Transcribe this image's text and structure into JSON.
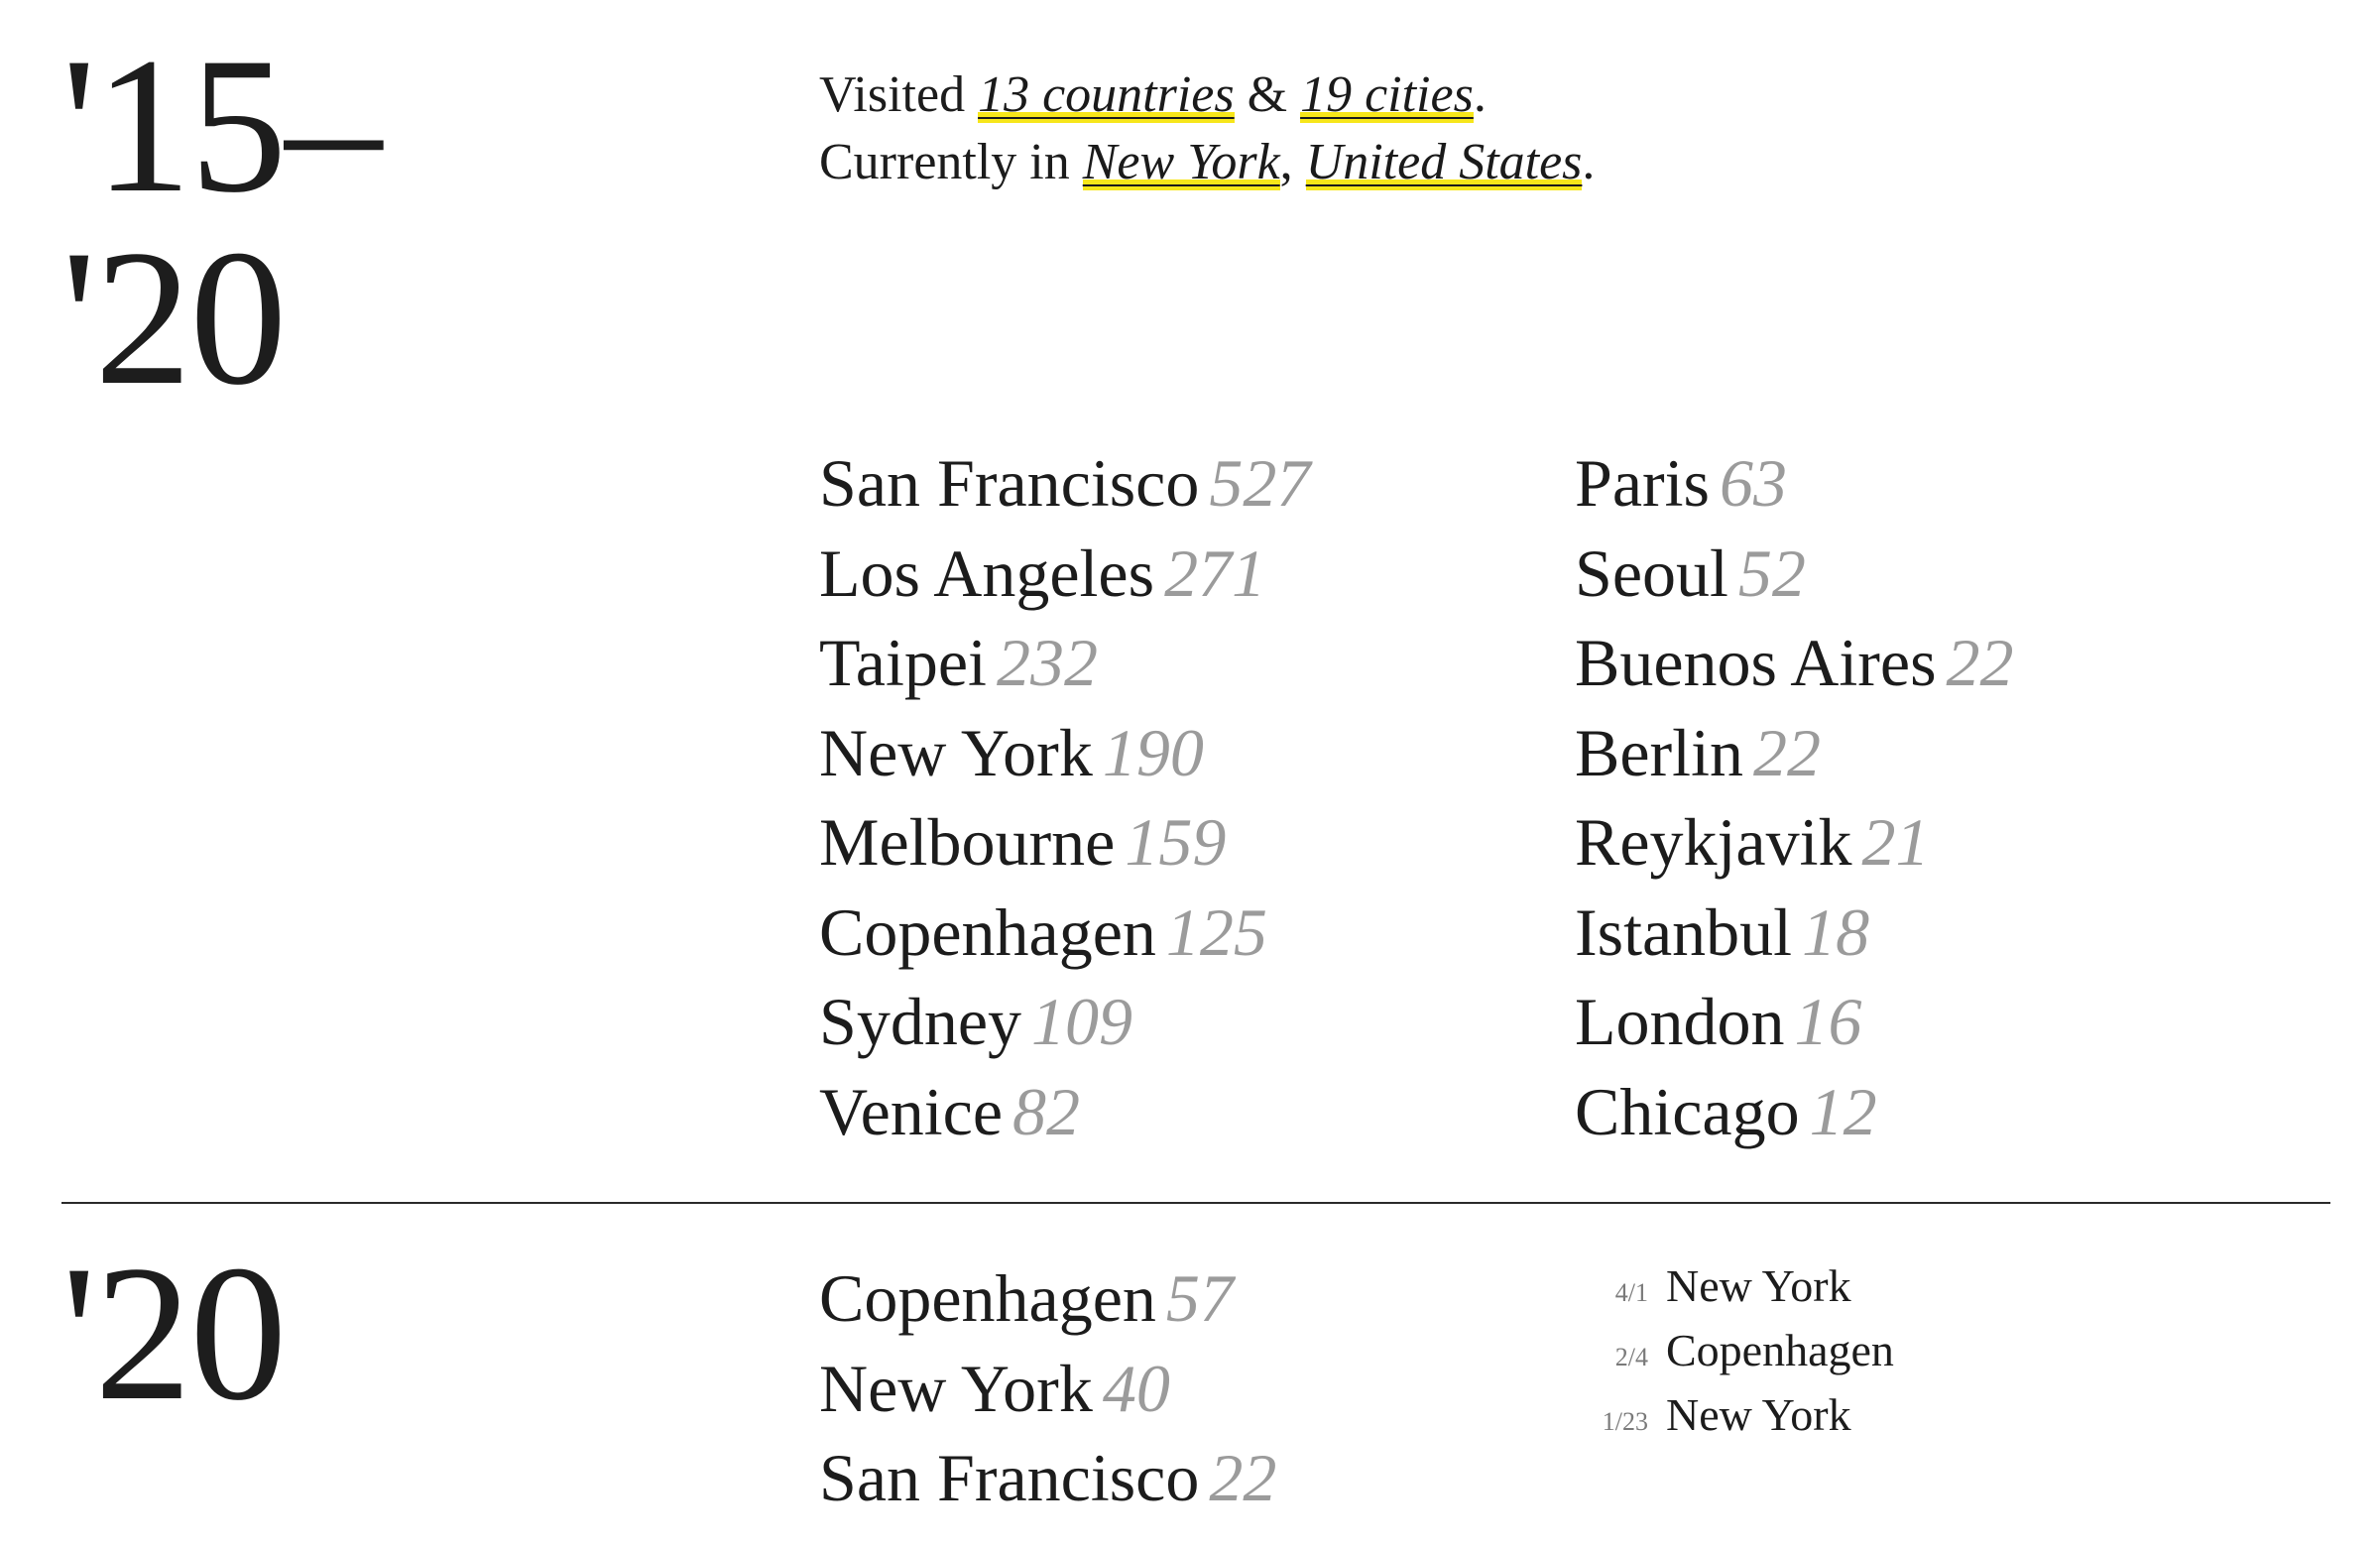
{
  "period": {
    "year_label": [
      "'15–",
      "'20"
    ],
    "summary": {
      "line1_prefix": "Visited ",
      "countries_link": "13 countries",
      "and": " & ",
      "cities_link": "19 cities",
      "line1_suffix": ".",
      "line2_prefix": "Currently in ",
      "current_city_link": "New York",
      "comma": ", ",
      "current_country_link": "United States",
      "line2_suffix": "."
    },
    "cities_left": [
      {
        "name": "San Francisco",
        "count": "527"
      },
      {
        "name": "Los Angeles",
        "count": "271"
      },
      {
        "name": "Taipei",
        "count": "232"
      },
      {
        "name": "New York",
        "count": "190"
      },
      {
        "name": "Melbourne",
        "count": "159"
      },
      {
        "name": "Copenhagen",
        "count": "125"
      },
      {
        "name": "Sydney",
        "count": "109"
      },
      {
        "name": "Venice",
        "count": "82"
      }
    ],
    "cities_right": [
      {
        "name": "Paris",
        "count": "63"
      },
      {
        "name": "Seoul",
        "count": "52"
      },
      {
        "name": "Buenos Aires",
        "count": "22"
      },
      {
        "name": "Berlin",
        "count": "22"
      },
      {
        "name": "Reykjavik",
        "count": "21"
      },
      {
        "name": "Istanbul",
        "count": "18"
      },
      {
        "name": "London",
        "count": "16"
      },
      {
        "name": "Chicago",
        "count": "12"
      }
    ]
  },
  "year_2020": {
    "year_label": "'20",
    "cities": [
      {
        "name": "Copenhagen",
        "count": "57"
      },
      {
        "name": "New York",
        "count": "40"
      },
      {
        "name": "San Francisco",
        "count": "22"
      }
    ],
    "trips": [
      {
        "date": "4/1",
        "city": "New York"
      },
      {
        "date": "2/4",
        "city": "Copenhagen"
      },
      {
        "date": "1/23",
        "city": "New York"
      }
    ]
  },
  "colors": {
    "highlight": "#f7e61a",
    "count_gray": "#9b9b9b",
    "text": "#1c1c1c"
  }
}
